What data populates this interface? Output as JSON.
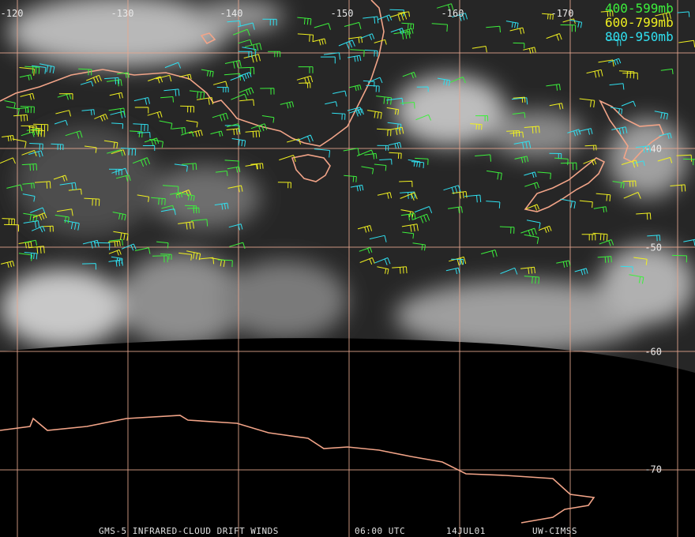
{
  "map": {
    "longitude_labels": [
      "-120",
      "-130",
      "-140",
      "-150",
      "-160",
      "-170"
    ],
    "latitude_labels": [
      "-40",
      "-50",
      "-60",
      "-70"
    ],
    "legend": [
      {
        "label": "400-599mb",
        "color": "#3cf03c"
      },
      {
        "label": "600-799mb",
        "color": "#f0f020"
      },
      {
        "label": "800-950mb",
        "color": "#30e0f0"
      }
    ],
    "footer": {
      "product": "GMS-5 INFRARED-CLOUD DRIFT WINDS",
      "time": "06:00 UTC",
      "date": "14JUL01",
      "source": "UW-CIMSS"
    }
  }
}
